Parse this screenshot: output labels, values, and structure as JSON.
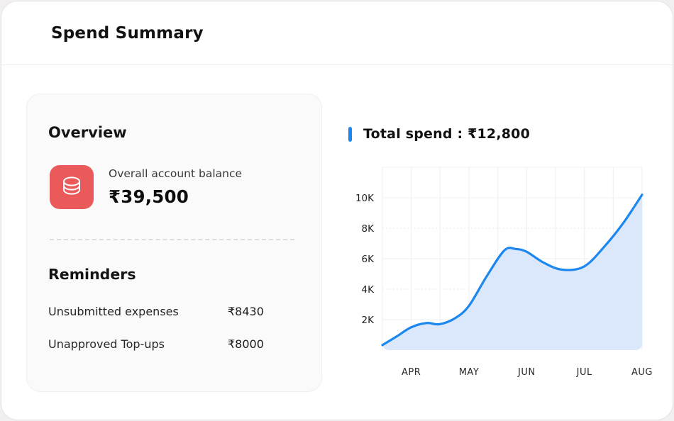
{
  "page": {
    "title": "Spend Summary"
  },
  "overview": {
    "heading": "Overview",
    "balance_label": "Overall account balance",
    "balance_value": "₹39,500",
    "icon": "coins-icon",
    "icon_bg": "#ea5a5a"
  },
  "reminders": {
    "heading": "Reminders",
    "items": [
      {
        "label": "Unsubmitted expenses",
        "value": "₹8430"
      },
      {
        "label": "Unapproved Top-ups",
        "value": "₹8000"
      }
    ]
  },
  "chart_data": {
    "type": "area",
    "title": "Total spend : ₹12,800",
    "total_spend": "₹12,800",
    "x_labels": [
      "APR",
      "MAY",
      "JUN",
      "JUL",
      "AUG"
    ],
    "y_tick_labels": [
      "2K",
      "4K",
      "6K",
      "8K",
      "10K"
    ],
    "y_tick_values_k": [
      2,
      4,
      6,
      8,
      10
    ],
    "ylim_k": [
      0,
      12
    ],
    "grid": true,
    "legend": false,
    "monthly_values_k": [
      1.5,
      2.9,
      6.5,
      5.5,
      10.2
    ],
    "curve_points": [
      [
        0.0,
        0.33
      ],
      [
        0.055,
        0.9
      ],
      [
        0.111,
        1.5
      ],
      [
        0.17,
        1.78
      ],
      [
        0.22,
        1.7
      ],
      [
        0.28,
        2.1
      ],
      [
        0.333,
        2.9
      ],
      [
        0.4,
        4.8
      ],
      [
        0.47,
        6.55
      ],
      [
        0.515,
        6.63
      ],
      [
        0.556,
        6.45
      ],
      [
        0.62,
        5.75
      ],
      [
        0.693,
        5.28
      ],
      [
        0.778,
        5.5
      ],
      [
        0.86,
        6.9
      ],
      [
        0.93,
        8.4
      ],
      [
        1.0,
        10.2
      ]
    ],
    "colors": {
      "line": "#1c87ee",
      "fill": "#dbe7fb",
      "grid_solid": "#efefef",
      "grid_dashed": "#e7e7e7",
      "tick_text": "#222222"
    }
  }
}
